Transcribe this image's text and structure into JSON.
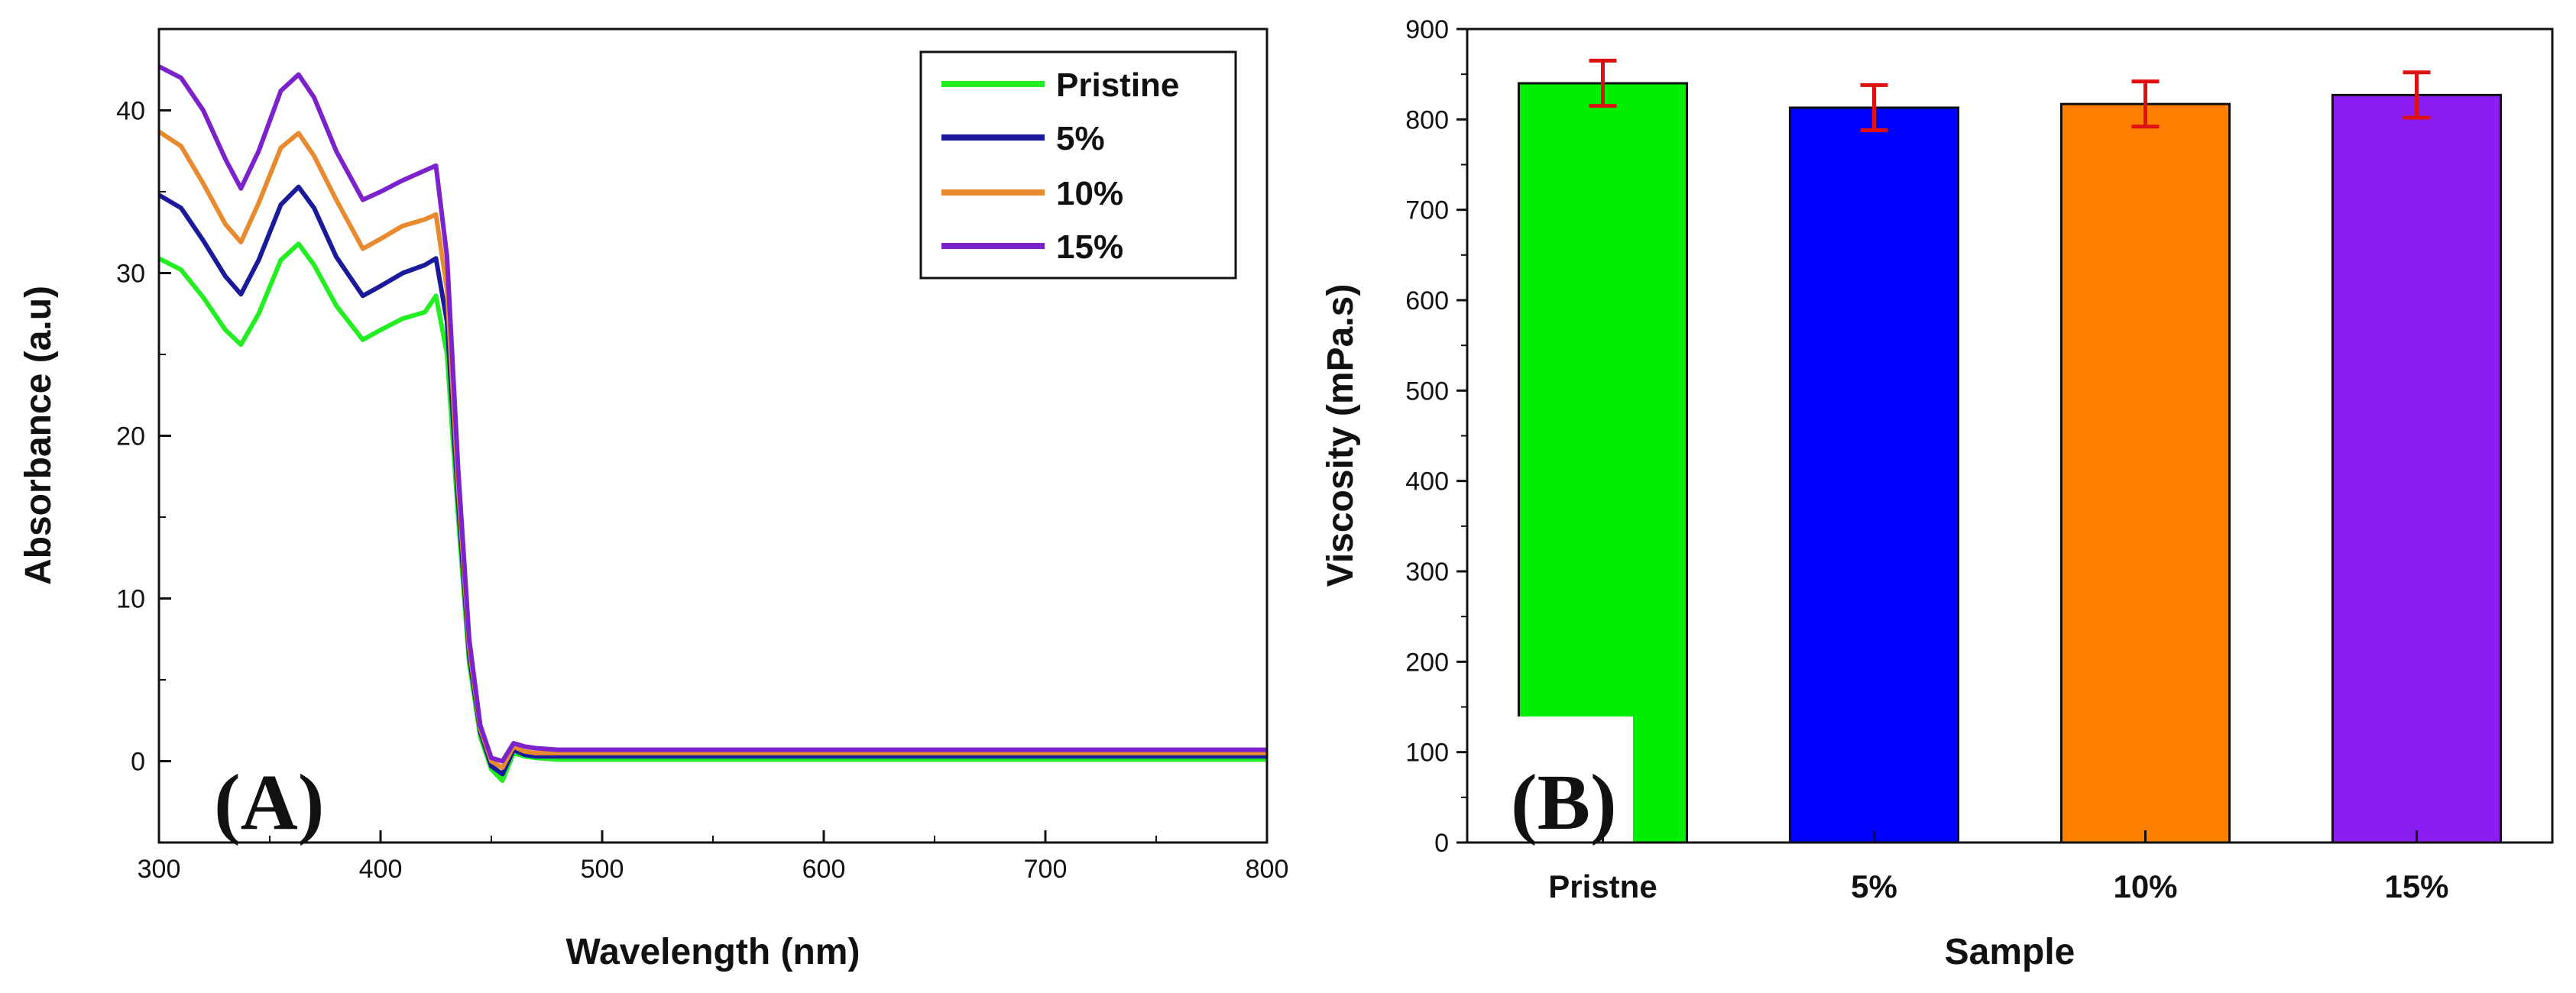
{
  "chart_data": [
    {
      "type": "line",
      "panel_label": "(A)",
      "title": "",
      "xlabel": "Wavelength (nm)",
      "ylabel": "Absorbance (a.u)",
      "xlim": [
        300,
        800
      ],
      "ylim": [
        -5,
        45
      ],
      "xticks": [
        "300",
        "400",
        "500",
        "600",
        "700",
        "800"
      ],
      "yticks": [
        "0",
        "10",
        "20",
        "30",
        "40"
      ],
      "legend_position": "top-right",
      "x": [
        300,
        310,
        320,
        330,
        337,
        345,
        355,
        363,
        370,
        380,
        392,
        400,
        410,
        420,
        425,
        430,
        435,
        440,
        445,
        450,
        455,
        460,
        465,
        470,
        480,
        500,
        550,
        600,
        650,
        700,
        750,
        800
      ],
      "series": [
        {
          "name": "Pristine",
          "color": "#22ee22",
          "values": [
            30.9,
            30.2,
            28.5,
            26.5,
            25.6,
            27.5,
            30.8,
            31.8,
            30.5,
            28.0,
            25.9,
            26.5,
            27.2,
            27.6,
            28.6,
            25.0,
            15.0,
            6.0,
            1.5,
            -0.5,
            -1.2,
            0.5,
            0.3,
            0.2,
            0.1,
            0.1,
            0.1,
            0.1,
            0.1,
            0.1,
            0.1,
            0.1
          ]
        },
        {
          "name": "5%",
          "color": "#1a1a9a",
          "values": [
            34.8,
            34.0,
            32.0,
            29.8,
            28.7,
            30.8,
            34.2,
            35.3,
            34.0,
            31.0,
            28.6,
            29.2,
            30.0,
            30.5,
            30.9,
            27.0,
            16.0,
            6.5,
            1.8,
            -0.3,
            -0.8,
            0.7,
            0.4,
            0.3,
            0.3,
            0.3,
            0.3,
            0.3,
            0.3,
            0.3,
            0.3,
            0.3
          ]
        },
        {
          "name": "10%",
          "color": "#e88a2e",
          "values": [
            38.7,
            37.8,
            35.5,
            33.0,
            31.9,
            34.3,
            37.7,
            38.6,
            37.2,
            34.5,
            31.5,
            32.1,
            32.9,
            33.3,
            33.6,
            29.0,
            17.0,
            7.0,
            2.0,
            0.0,
            -0.4,
            0.9,
            0.6,
            0.5,
            0.5,
            0.5,
            0.5,
            0.5,
            0.5,
            0.5,
            0.5,
            0.5
          ]
        },
        {
          "name": "15%",
          "color": "#7b22cc",
          "values": [
            42.7,
            42.0,
            40.0,
            37.0,
            35.2,
            37.5,
            41.2,
            42.2,
            40.8,
            37.5,
            34.5,
            35.0,
            35.7,
            36.3,
            36.6,
            31.0,
            18.0,
            7.5,
            2.2,
            0.2,
            0.0,
            1.1,
            0.9,
            0.8,
            0.7,
            0.7,
            0.7,
            0.7,
            0.7,
            0.7,
            0.7,
            0.7
          ]
        }
      ]
    },
    {
      "type": "bar",
      "panel_label": "(B)",
      "title": "",
      "xlabel": "Sample",
      "ylabel": "Viscosity (mPa.s)",
      "ylim": [
        0,
        900
      ],
      "yticks": [
        "0",
        "100",
        "200",
        "300",
        "400",
        "500",
        "600",
        "700",
        "800",
        "900"
      ],
      "categories": [
        "Pristne",
        "5%",
        "10%",
        "15%"
      ],
      "values": [
        840,
        813,
        817,
        827
      ],
      "errors": [
        25,
        25,
        25,
        25
      ],
      "colors": [
        "#00ee00",
        "#0000ff",
        "#ff8000",
        "#8a1ef0"
      ],
      "error_color": "#dd1111"
    }
  ]
}
